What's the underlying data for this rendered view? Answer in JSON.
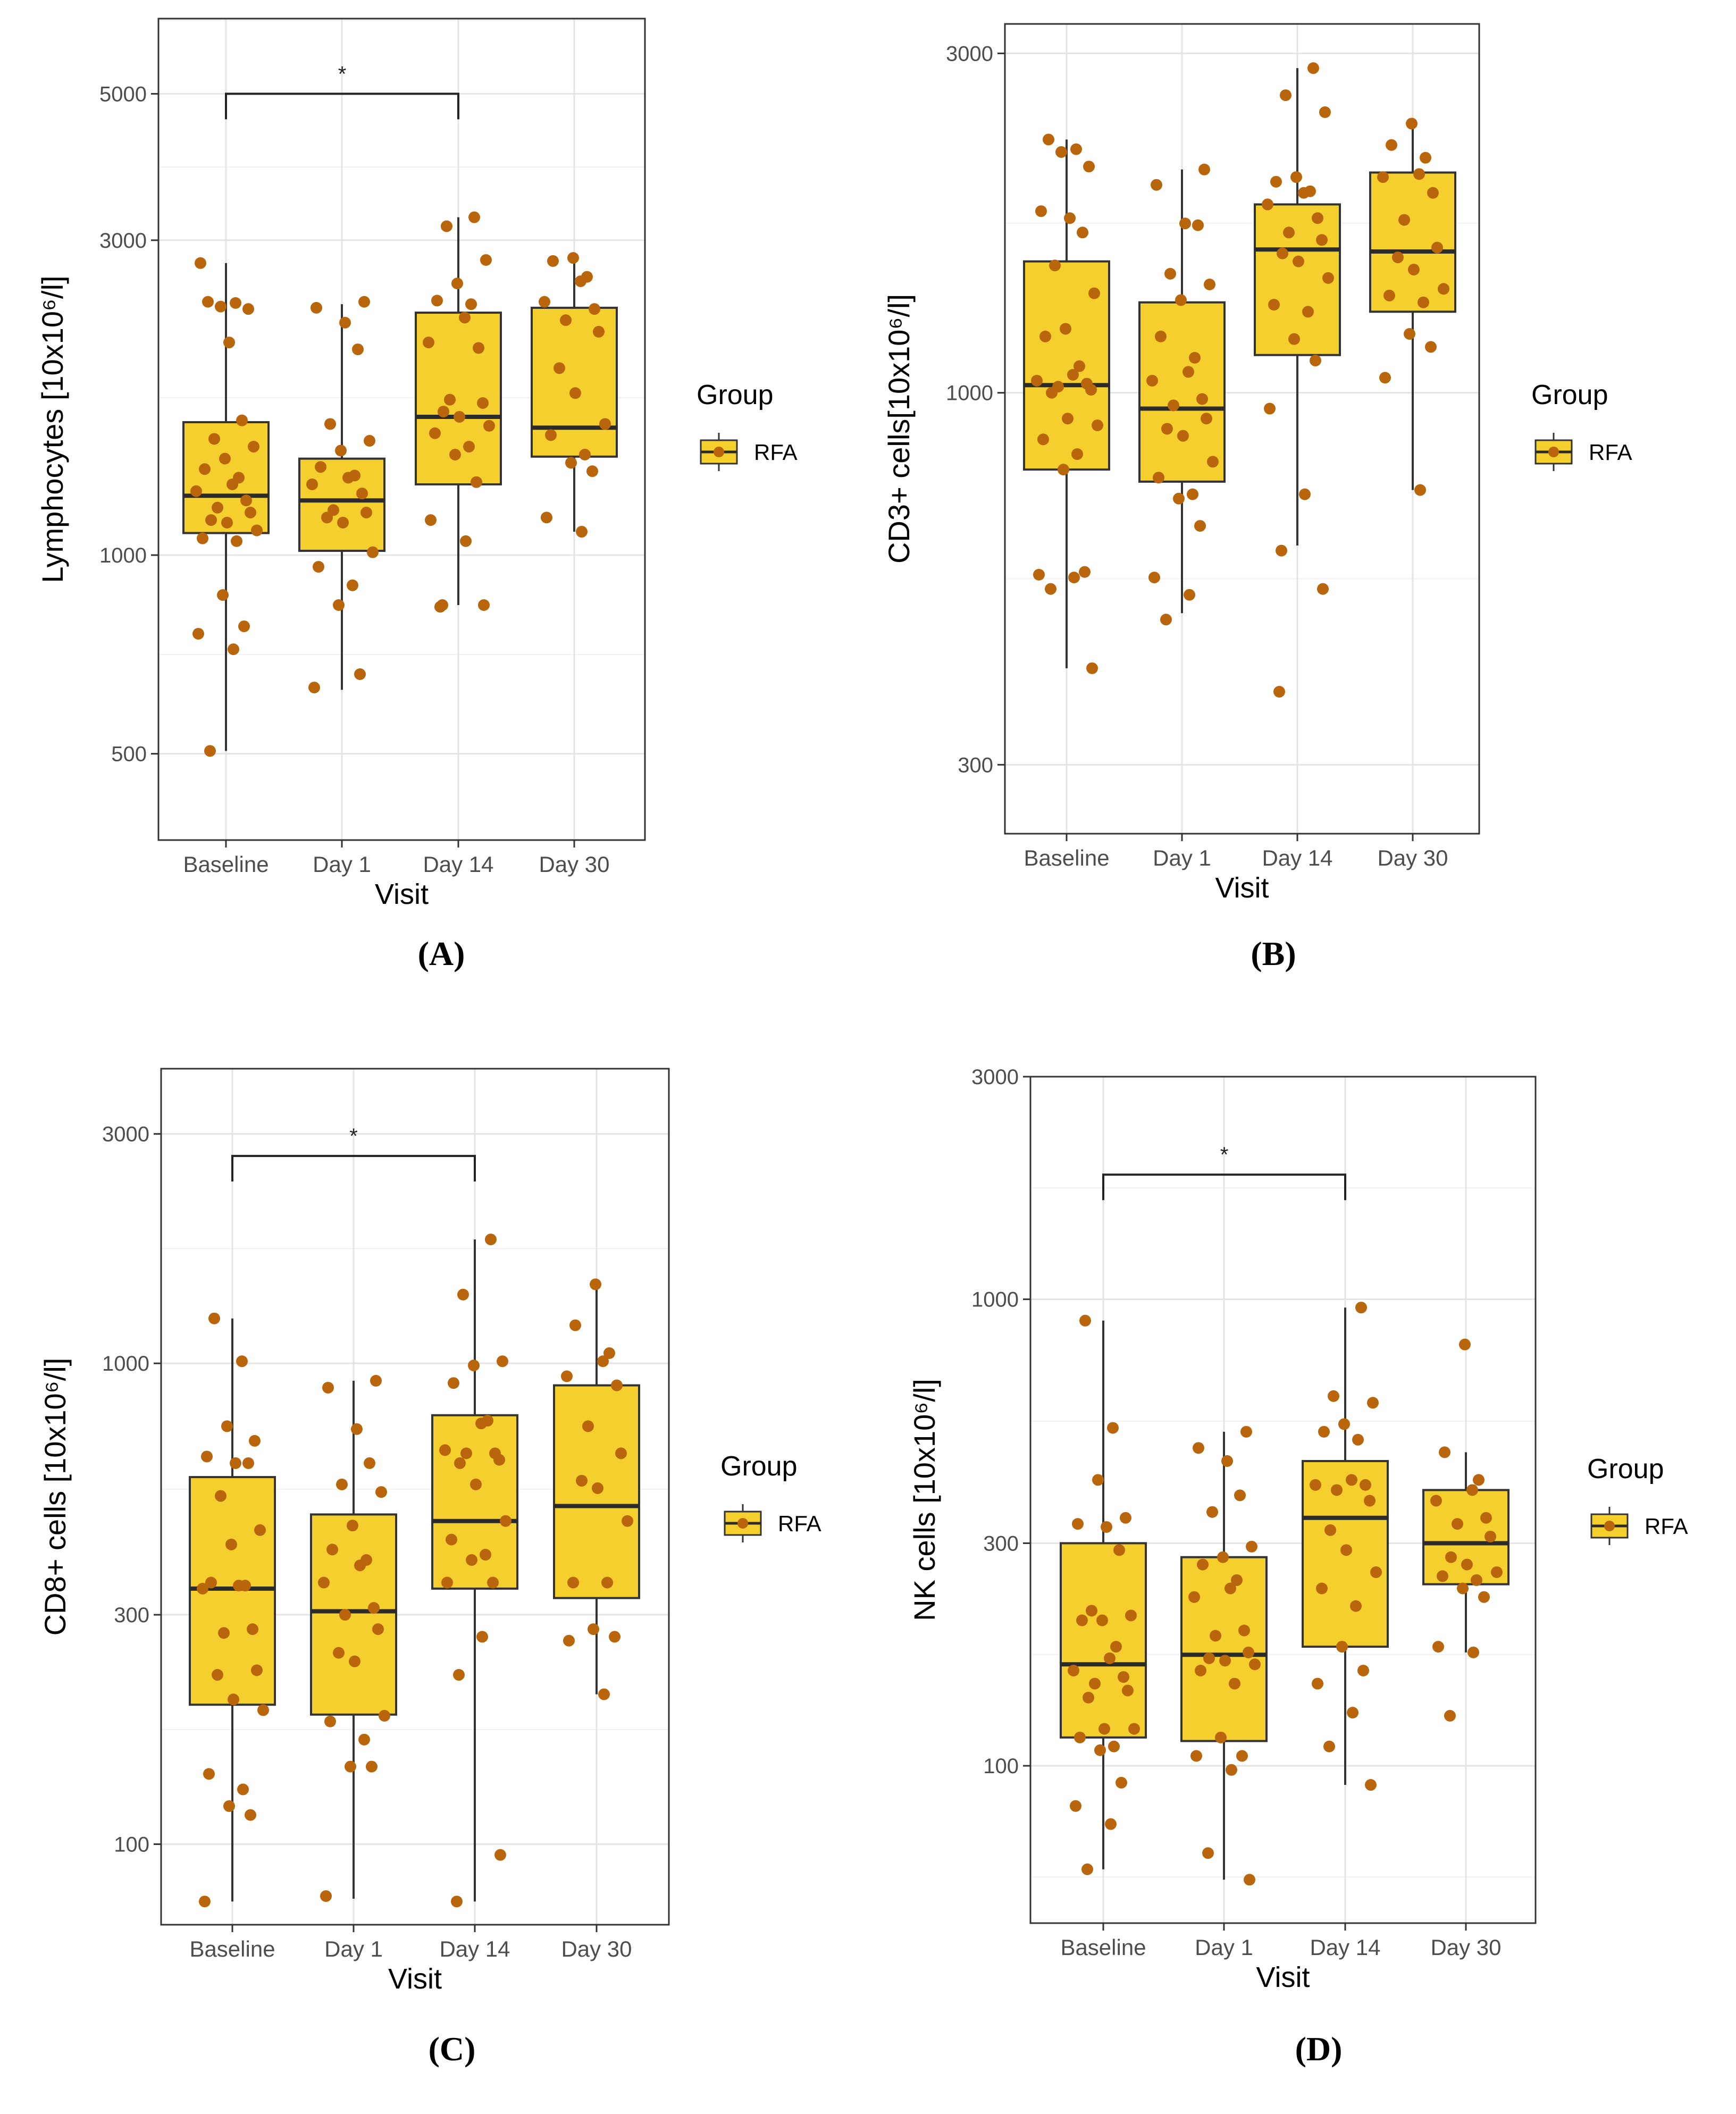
{
  "chart_data": [
    {
      "type": "box",
      "panel_label": "(A)",
      "ylabel": "Lymphocytes [10x10⁶/l]",
      "xlabel": "Visit",
      "y_scale": "log",
      "ylim": [
        370,
        6500
      ],
      "yticks": [
        500,
        1000,
        3000,
        5000
      ],
      "categories": [
        "Baseline",
        "Day 1",
        "Day 14",
        "Day 30"
      ],
      "legend": {
        "title": "Group",
        "entries": [
          "RFA"
        ]
      },
      "significance": [
        {
          "from": "Baseline",
          "to": "Day 14",
          "label": "*",
          "at": 5000
        }
      ],
      "boxes": [
        {
          "q1": 1080,
          "median": 1230,
          "q3": 1590,
          "whisker_low": 505,
          "whisker_high": 2770
        },
        {
          "q1": 1015,
          "median": 1210,
          "q3": 1400,
          "whisker_low": 625,
          "whisker_high": 2400
        },
        {
          "q1": 1280,
          "median": 1620,
          "q3": 2330,
          "whisker_low": 840,
          "whisker_high": 3250
        },
        {
          "q1": 1410,
          "median": 1560,
          "q3": 2370,
          "whisker_low": 1085,
          "whisker_high": 2820
        }
      ],
      "points": [
        [
          2420,
          2410,
          2380,
          2360,
          2770,
          2100,
          1600,
          1500,
          1460,
          1400,
          1350,
          1310,
          1280,
          1250,
          1210,
          1180,
          1160,
          1130,
          1120,
          1090,
          1060,
          1050,
          870,
          780,
          760,
          720,
          505
        ],
        [
          2420,
          2370,
          2250,
          2050,
          1580,
          1490,
          1440,
          1360,
          1320,
          1310,
          1280,
          1240,
          1170,
          1160,
          1140,
          1120,
          1010,
          960,
          900,
          840,
          660,
          630
        ],
        [
          3250,
          3150,
          2800,
          2580,
          2430,
          2400,
          2290,
          2100,
          2060,
          1720,
          1700,
          1650,
          1620,
          1570,
          1530,
          1460,
          1420,
          1290,
          1130,
          1050,
          840,
          840,
          835
        ],
        [
          2820,
          2790,
          2640,
          2600,
          2420,
          2360,
          2270,
          2180,
          1920,
          1760,
          1580,
          1520,
          1420,
          1380,
          1340,
          1140,
          1085
        ]
      ]
    },
    {
      "type": "box",
      "panel_label": "(B)",
      "ylabel": "CD3+ cells[10x10⁶/l]",
      "xlabel": "Visit",
      "y_scale": "log",
      "ylim": [
        240,
        3300
      ],
      "yticks": [
        300,
        1000,
        3000
      ],
      "categories": [
        "Baseline",
        "Day 1",
        "Day 14",
        "Day 30"
      ],
      "legend": {
        "title": "Group",
        "entries": [
          "RFA"
        ]
      },
      "significance": [],
      "boxes": [
        {
          "q1": 780,
          "median": 1025,
          "q3": 1530,
          "whisker_low": 410,
          "whisker_high": 2270
        },
        {
          "q1": 750,
          "median": 950,
          "q3": 1340,
          "whisker_low": 490,
          "whisker_high": 2060
        },
        {
          "q1": 1130,
          "median": 1590,
          "q3": 1840,
          "whisker_low": 610,
          "whisker_high": 2860
        },
        {
          "q1": 1300,
          "median": 1580,
          "q3": 2040,
          "whisker_low": 730,
          "whisker_high": 2390
        }
      ],
      "points": [
        [
          2270,
          2200,
          2180,
          2080,
          1800,
          1760,
          1680,
          1510,
          1380,
          1230,
          1200,
          1090,
          1060,
          1040,
          1030,
          1020,
          1010,
          1000,
          920,
          900,
          860,
          820,
          780,
          560,
          555,
          550,
          530,
          410
        ],
        [
          2060,
          1960,
          1730,
          1720,
          1470,
          1420,
          1350,
          1200,
          1120,
          1070,
          1040,
          980,
          960,
          920,
          890,
          870,
          800,
          760,
          720,
          710,
          650,
          550,
          520,
          480
        ],
        [
          2860,
          2620,
          2480,
          2010,
          1980,
          1920,
          1910,
          1840,
          1760,
          1680,
          1640,
          1570,
          1530,
          1450,
          1330,
          1300,
          1190,
          1110,
          950,
          720,
          600,
          530,
          380
        ],
        [
          2390,
          2230,
          2140,
          2030,
          2010,
          1910,
          1750,
          1600,
          1550,
          1490,
          1400,
          1370,
          1340,
          1210,
          1160,
          1050,
          730
        ]
      ]
    },
    {
      "type": "box",
      "panel_label": "(C)",
      "ylabel": "CD8+ cells [10x10⁶/l]",
      "xlabel": "Visit",
      "y_scale": "log",
      "ylim": [
        68,
        4100
      ],
      "yticks": [
        100,
        300,
        1000,
        3000
      ],
      "categories": [
        "Baseline",
        "Day 1",
        "Day 14",
        "Day 30"
      ],
      "legend": {
        "title": "Group",
        "entries": [
          "RFA"
        ]
      },
      "significance": [
        {
          "from": "Baseline",
          "to": "Day 14",
          "label": "*",
          "at": 2700
        }
      ],
      "boxes": [
        {
          "q1": 195,
          "median": 340,
          "q3": 580,
          "whisker_low": 76,
          "whisker_high": 1240
        },
        {
          "q1": 186,
          "median": 305,
          "q3": 485,
          "whisker_low": 77,
          "whisker_high": 920
        },
        {
          "q1": 340,
          "median": 470,
          "q3": 780,
          "whisker_low": 76,
          "whisker_high": 1810
        },
        {
          "q1": 325,
          "median": 505,
          "q3": 900,
          "whisker_low": 205,
          "whisker_high": 1450
        }
      ],
      "points": [
        [
          1240,
          1010,
          740,
          690,
          640,
          620,
          620,
          530,
          450,
          420,
          350,
          345,
          345,
          340,
          280,
          275,
          230,
          225,
          200,
          190,
          140,
          130,
          120,
          115,
          76
        ],
        [
          920,
          890,
          730,
          620,
          560,
          540,
          460,
          410,
          390,
          380,
          350,
          310,
          300,
          280,
          250,
          240,
          185,
          180,
          165,
          145,
          145,
          78
        ],
        [
          1810,
          1390,
          1010,
          990,
          910,
          760,
          750,
          660,
          650,
          650,
          630,
          620,
          560,
          470,
          430,
          400,
          390,
          350,
          350,
          270,
          225,
          95,
          76
        ],
        [
          1460,
          1200,
          1050,
          1010,
          940,
          900,
          740,
          650,
          570,
          550,
          470,
          350,
          350,
          280,
          270,
          265,
          205
        ]
      ]
    },
    {
      "type": "box",
      "panel_label": "(D)",
      "ylabel": "NK cells [10x10⁶/l]",
      "xlabel": "Visit",
      "y_scale": "log",
      "ylim": [
        46,
        3000
      ],
      "yticks": [
        100,
        300,
        1000,
        3000
      ],
      "categories": [
        "Baseline",
        "Day 1",
        "Day 14",
        "Day 30"
      ],
      "legend": {
        "title": "Group",
        "entries": [
          "RFA"
        ]
      },
      "significance": [
        {
          "from": "Baseline",
          "to": "Day 14",
          "label": "*",
          "at": 1850
        }
      ],
      "boxes": [
        {
          "q1": 115,
          "median": 165,
          "q3": 300,
          "whisker_low": 60,
          "whisker_high": 900
        },
        {
          "q1": 113,
          "median": 173,
          "q3": 280,
          "whisker_low": 57,
          "whisker_high": 520
        },
        {
          "q1": 180,
          "median": 340,
          "q3": 450,
          "whisker_low": 91,
          "whisker_high": 960
        },
        {
          "q1": 245,
          "median": 300,
          "q3": 390,
          "whisker_low": 175,
          "whisker_high": 470
        }
      ],
      "points": [
        [
          900,
          530,
          410,
          340,
          330,
          325,
          290,
          215,
          210,
          205,
          205,
          180,
          170,
          160,
          155,
          150,
          145,
          140,
          120,
          120,
          115,
          110,
          108,
          92,
          82,
          75,
          60
        ],
        [
          520,
          480,
          450,
          380,
          350,
          295,
          280,
          270,
          250,
          240,
          230,
          195,
          190,
          175,
          170,
          168,
          165,
          160,
          150,
          115,
          105,
          105,
          98,
          65,
          57
        ],
        [
          960,
          620,
          600,
          540,
          520,
          500,
          410,
          400,
          400,
          390,
          370,
          320,
          290,
          260,
          240,
          220,
          180,
          160,
          150,
          130,
          110,
          91
        ],
        [
          800,
          470,
          410,
          390,
          370,
          340,
          330,
          310,
          280,
          270,
          260,
          255,
          250,
          240,
          230,
          180,
          175,
          128
        ]
      ]
    }
  ]
}
